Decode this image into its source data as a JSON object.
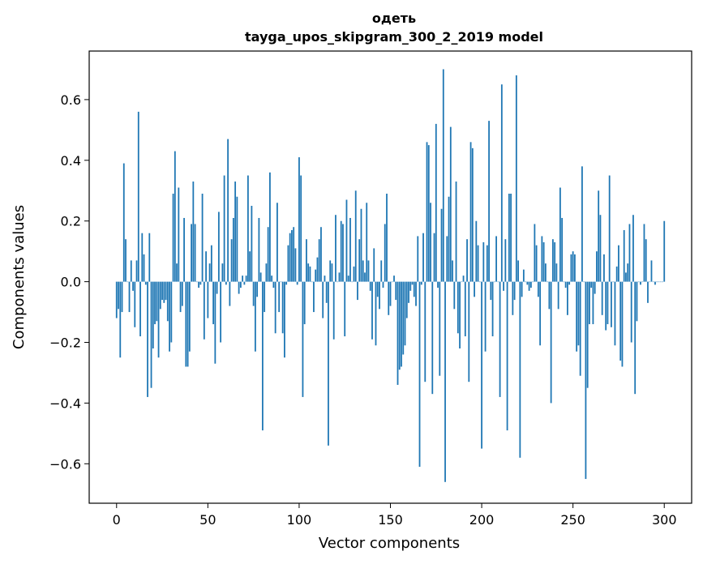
{
  "chart_data": {
    "type": "bar",
    "title_line1": "одеть",
    "title_line2": "tayga_upos_skipgram_300_2_2019 model",
    "xlabel": "Vector components",
    "ylabel": "Components values",
    "xlim": [
      -15,
      315
    ],
    "ylim": [
      -0.73,
      0.76
    ],
    "xticks": [
      0,
      50,
      100,
      150,
      200,
      250,
      300
    ],
    "xtick_labels": [
      "0",
      "50",
      "100",
      "150",
      "200",
      "250",
      "300"
    ],
    "yticks": [
      -0.6,
      -0.4,
      -0.2,
      0.0,
      0.2,
      0.4,
      0.6
    ],
    "ytick_labels": [
      "−0.6",
      "−0.4",
      "−0.2",
      "0.0",
      "0.2",
      "0.4",
      "0.6"
    ],
    "bar_color": "#1f77b4",
    "values": [
      -0.12,
      -0.09,
      -0.25,
      -0.1,
      0.39,
      0.14,
      0.0,
      -0.1,
      0.07,
      -0.03,
      -0.15,
      0.07,
      0.56,
      -0.18,
      0.16,
      0.09,
      -0.01,
      -0.38,
      0.16,
      -0.35,
      -0.22,
      -0.14,
      -0.13,
      -0.25,
      -0.09,
      -0.06,
      -0.07,
      -0.06,
      -0.13,
      -0.23,
      -0.2,
      0.29,
      0.43,
      0.06,
      0.31,
      -0.1,
      -0.08,
      0.21,
      -0.28,
      -0.28,
      -0.23,
      0.19,
      0.33,
      0.19,
      0.0,
      -0.02,
      -0.01,
      0.29,
      -0.19,
      0.1,
      -0.12,
      0.06,
      0.12,
      -0.14,
      -0.27,
      -0.04,
      0.23,
      -0.2,
      0.06,
      0.35,
      -0.01,
      0.47,
      -0.08,
      0.14,
      0.21,
      0.33,
      0.28,
      -0.04,
      -0.02,
      0.02,
      -0.01,
      0.02,
      0.35,
      0.1,
      0.25,
      -0.08,
      -0.23,
      -0.05,
      0.21,
      0.03,
      -0.49,
      -0.1,
      0.06,
      0.18,
      0.36,
      0.02,
      -0.02,
      -0.17,
      0.26,
      -0.1,
      0.0,
      -0.17,
      -0.25,
      -0.01,
      0.12,
      0.16,
      0.17,
      0.18,
      0.11,
      -0.01,
      0.41,
      0.35,
      -0.38,
      -0.14,
      0.14,
      0.06,
      0.05,
      0.0,
      -0.1,
      0.04,
      0.08,
      0.14,
      0.18,
      -0.12,
      0.02,
      -0.07,
      -0.54,
      0.07,
      0.06,
      -0.19,
      0.22,
      0.0,
      0.03,
      0.2,
      0.19,
      -0.18,
      0.27,
      0.02,
      0.21,
      0.0,
      0.05,
      0.3,
      -0.06,
      0.14,
      0.24,
      0.07,
      0.03,
      0.26,
      0.07,
      -0.03,
      -0.19,
      0.11,
      -0.21,
      -0.05,
      -0.09,
      0.07,
      -0.02,
      0.19,
      0.29,
      -0.11,
      -0.08,
      0.0,
      0.02,
      -0.06,
      -0.34,
      -0.29,
      -0.28,
      -0.24,
      -0.21,
      -0.12,
      -0.07,
      -0.03,
      -0.01,
      -0.05,
      -0.08,
      0.15,
      -0.61,
      -0.01,
      0.16,
      -0.33,
      0.46,
      0.45,
      0.26,
      -0.37,
      0.16,
      0.52,
      -0.02,
      -0.31,
      0.24,
      0.7,
      -0.66,
      0.15,
      0.28,
      0.51,
      0.07,
      -0.09,
      0.33,
      -0.17,
      -0.22,
      0.0,
      0.02,
      -0.18,
      0.14,
      -0.33,
      0.46,
      0.44,
      -0.05,
      0.2,
      0.12,
      0.0,
      -0.55,
      0.13,
      -0.23,
      0.12,
      0.53,
      -0.06,
      -0.18,
      0.0,
      0.15,
      0.0,
      -0.38,
      0.65,
      -0.03,
      0.14,
      -0.49,
      0.29,
      0.29,
      -0.11,
      -0.06,
      0.68,
      0.07,
      -0.58,
      -0.05,
      0.04,
      0.0,
      -0.01,
      -0.03,
      -0.02,
      0.0,
      0.19,
      0.12,
      -0.05,
      -0.21,
      0.15,
      0.13,
      0.06,
      0.0,
      -0.09,
      -0.4,
      0.14,
      0.13,
      0.06,
      -0.09,
      0.31,
      0.21,
      0.0,
      -0.02,
      -0.11,
      -0.01,
      0.09,
      0.1,
      0.09,
      -0.23,
      -0.21,
      -0.31,
      0.38,
      0.0,
      -0.65,
      -0.35,
      -0.14,
      -0.02,
      -0.14,
      -0.04,
      0.1,
      0.3,
      0.22,
      -0.11,
      0.09,
      -0.16,
      -0.14,
      0.35,
      -0.15,
      0.0,
      -0.21,
      0.05,
      0.12,
      -0.26,
      -0.28,
      0.17,
      0.03,
      0.06,
      0.19,
      -0.2,
      0.22,
      -0.37,
      -0.13,
      0.0,
      -0.01,
      0.0,
      0.19,
      0.14,
      -0.07,
      0.0,
      0.07,
      0.0,
      -0.01,
      0.0,
      0.0,
      0.0,
      0.0,
      0.2
    ]
  }
}
